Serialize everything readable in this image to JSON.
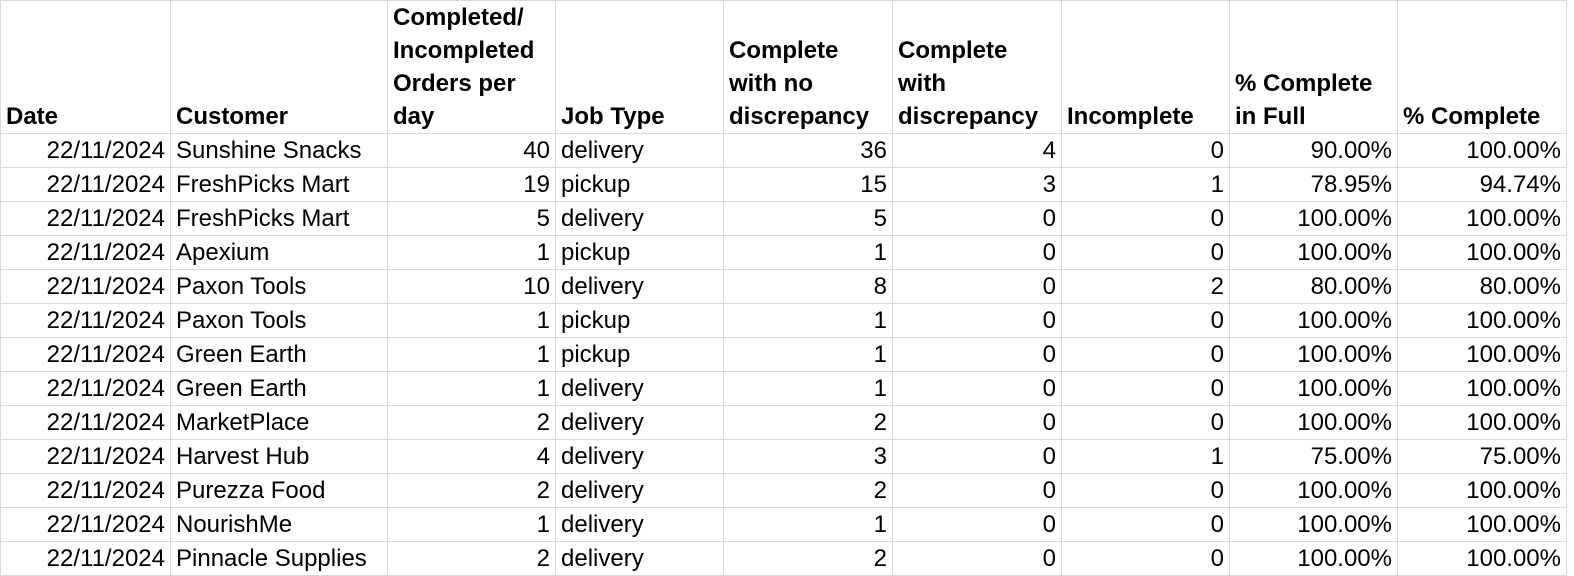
{
  "table": {
    "headers": [
      "Date",
      "Customer",
      "Completed/ Incompleted Orders per day",
      "Job Type",
      "Complete with no discrepancy",
      "Complete with discrepancy",
      "Incomplete",
      "% Complete in Full",
      "% Complete"
    ],
    "rows": [
      [
        "22/11/2024",
        "Sunshine Snacks",
        "40",
        "delivery",
        "36",
        "4",
        "0",
        "90.00%",
        "100.00%"
      ],
      [
        "22/11/2024",
        "FreshPicks Mart",
        "19",
        "pickup",
        "15",
        "3",
        "1",
        "78.95%",
        "94.74%"
      ],
      [
        "22/11/2024",
        "FreshPicks Mart",
        "5",
        "delivery",
        "5",
        "0",
        "0",
        "100.00%",
        "100.00%"
      ],
      [
        "22/11/2024",
        "Apexium",
        "1",
        "pickup",
        "1",
        "0",
        "0",
        "100.00%",
        "100.00%"
      ],
      [
        "22/11/2024",
        "Paxon Tools",
        "10",
        "delivery",
        "8",
        "0",
        "2",
        "80.00%",
        "80.00%"
      ],
      [
        "22/11/2024",
        "Paxon Tools",
        "1",
        "pickup",
        "1",
        "0",
        "0",
        "100.00%",
        "100.00%"
      ],
      [
        "22/11/2024",
        "Green Earth",
        "1",
        "pickup",
        "1",
        "0",
        "0",
        "100.00%",
        "100.00%"
      ],
      [
        "22/11/2024",
        "Green Earth",
        "1",
        "delivery",
        "1",
        "0",
        "0",
        "100.00%",
        "100.00%"
      ],
      [
        "22/11/2024",
        "MarketPlace",
        "2",
        "delivery",
        "2",
        "0",
        "0",
        "100.00%",
        "100.00%"
      ],
      [
        "22/11/2024",
        "Harvest Hub",
        "4",
        "delivery",
        "3",
        "0",
        "1",
        "75.00%",
        "75.00%"
      ],
      [
        "22/11/2024",
        "Purezza Food",
        "2",
        "delivery",
        "2",
        "0",
        "0",
        "100.00%",
        "100.00%"
      ],
      [
        "22/11/2024",
        "NourishMe",
        "1",
        "delivery",
        "1",
        "0",
        "0",
        "100.00%",
        "100.00%"
      ],
      [
        "22/11/2024",
        "Pinnacle Supplies",
        "2",
        "delivery",
        "2",
        "0",
        "0",
        "100.00%",
        "100.00%"
      ]
    ]
  }
}
